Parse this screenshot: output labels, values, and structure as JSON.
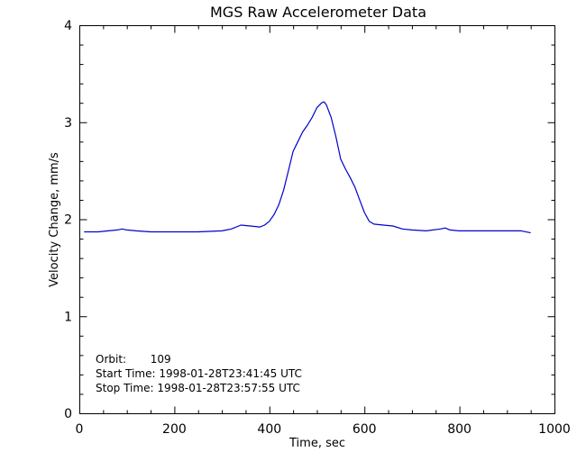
{
  "chart_data": {
    "type": "line",
    "title": "MGS Raw Accelerometer Data",
    "xlabel": "Time, sec",
    "ylabel": "Velocity Change, mm/s",
    "xlim": [
      0,
      1000
    ],
    "ylim": [
      0,
      4
    ],
    "xticks": [
      "0",
      "200",
      "400",
      "600",
      "800",
      "1000"
    ],
    "yticks": [
      "0",
      "1",
      "2",
      "3",
      "4"
    ],
    "grid": false,
    "series": [
      {
        "color": "#0000cc",
        "x": [
          10,
          20,
          40,
          60,
          80,
          90,
          100,
          120,
          150,
          200,
          250,
          300,
          320,
          340,
          360,
          380,
          390,
          400,
          410,
          420,
          430,
          440,
          450,
          460,
          470,
          480,
          490,
          500,
          510,
          515,
          520,
          530,
          540,
          550,
          560,
          570,
          580,
          590,
          600,
          610,
          620,
          640,
          660,
          680,
          700,
          730,
          760,
          770,
          780,
          800,
          850,
          900,
          930,
          950
        ],
        "y": [
          1.87,
          1.87,
          1.87,
          1.88,
          1.89,
          1.9,
          1.89,
          1.88,
          1.87,
          1.87,
          1.87,
          1.88,
          1.9,
          1.94,
          1.93,
          1.92,
          1.94,
          1.98,
          2.05,
          2.15,
          2.3,
          2.5,
          2.7,
          2.8,
          2.9,
          2.97,
          3.05,
          3.15,
          3.2,
          3.21,
          3.18,
          3.05,
          2.85,
          2.62,
          2.52,
          2.43,
          2.33,
          2.2,
          2.07,
          1.98,
          1.95,
          1.94,
          1.93,
          1.9,
          1.89,
          1.88,
          1.9,
          1.91,
          1.89,
          1.88,
          1.88,
          1.88,
          1.88,
          1.86
        ]
      }
    ],
    "annotations": {
      "orbit": "Orbit:       109",
      "start": "Start Time: 1998-01-28T23:41:45 UTC",
      "stop": "Stop Time: 1998-01-28T23:57:55 UTC"
    }
  }
}
